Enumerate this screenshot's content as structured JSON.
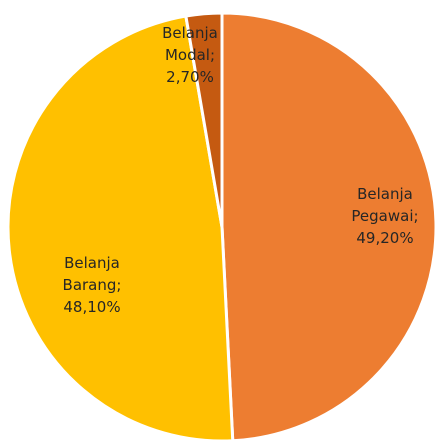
{
  "chart_data": {
    "type": "pie",
    "values": [
      49.2,
      48.1,
      2.7
    ],
    "value_labels": [
      "Belanja Pegawai; 49,20%",
      "Belanja Barang; 48,10%",
      "Belanja Modal; 2,70%"
    ],
    "colors": [
      "#ED7D31",
      "#FFC000",
      "#C55A11"
    ],
    "start_angle": 0,
    "direction": "clockwise"
  }
}
